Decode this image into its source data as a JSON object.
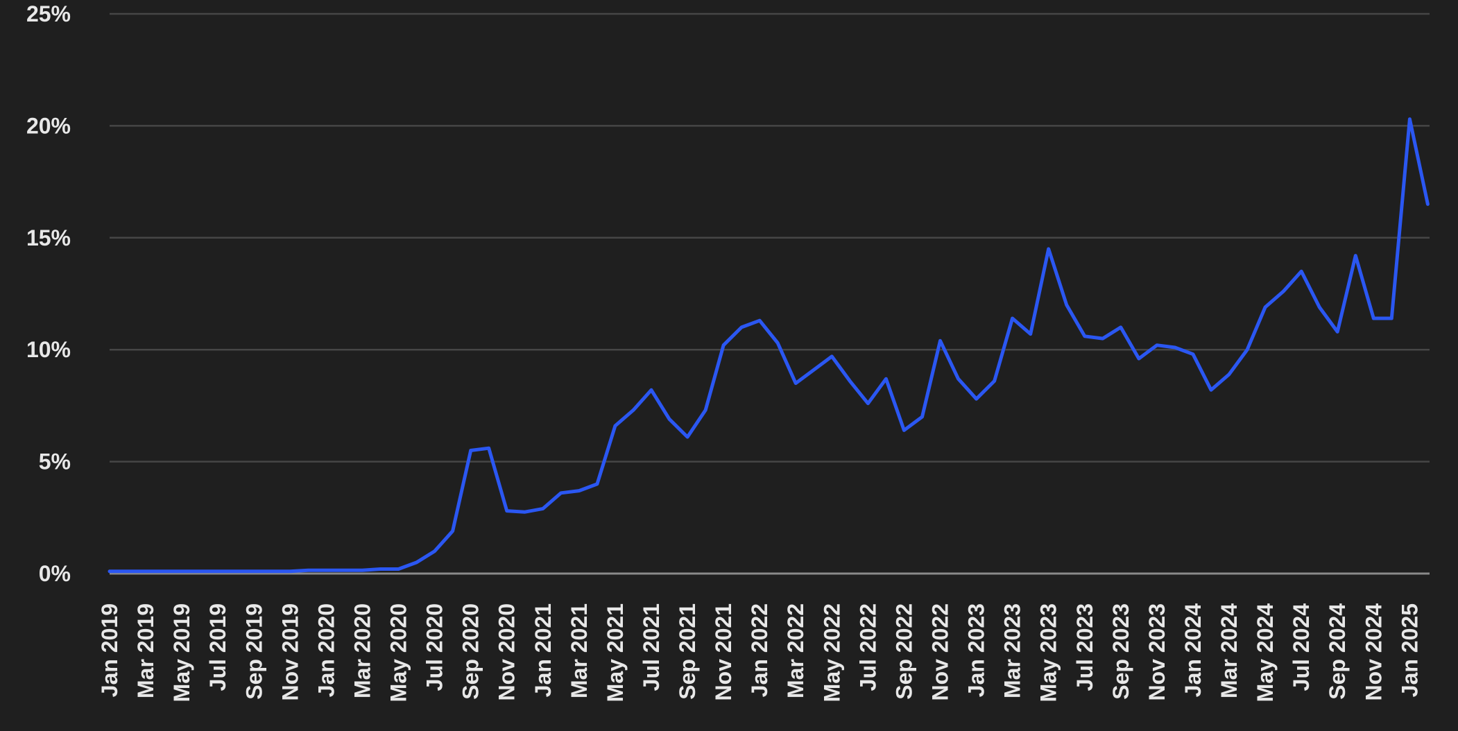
{
  "chart_data": {
    "type": "line",
    "categories": [
      "Jan 2019",
      null,
      "Mar 2019",
      null,
      "May 2019",
      null,
      "Jul 2019",
      null,
      "Sep 2019",
      null,
      "Nov 2019",
      null,
      "Jan 2020",
      null,
      "Mar 2020",
      null,
      "May 2020",
      null,
      "Jul 2020",
      null,
      "Sep 2020",
      null,
      "Nov 2020",
      null,
      "Jan 2021",
      null,
      "Mar 2021",
      null,
      "May 2021",
      null,
      "Jul 2021",
      null,
      "Sep 2021",
      null,
      "Nov 2021",
      null,
      "Jan 2022",
      null,
      "Mar 2022",
      null,
      "May 2022",
      null,
      "Jul 2022",
      null,
      "Sep 2022",
      null,
      "Nov 2022",
      null,
      "Jan 2023",
      null,
      "Mar 2023",
      null,
      "May 2023",
      null,
      "Jul 2023",
      null,
      "Sep 2023",
      null,
      "Nov 2023",
      null,
      "Jan 2024",
      null,
      "Mar 2024",
      null,
      "May 2024",
      null,
      "Jul 2024",
      null,
      "Sep 2024",
      null,
      "Nov 2024",
      null,
      "Jan 2025",
      null
    ],
    "values": [
      0.1,
      0.1,
      0.1,
      0.1,
      0.1,
      0.1,
      0.1,
      0.1,
      0.1,
      0.1,
      0.1,
      0.15,
      0.15,
      0.15,
      0.15,
      0.2,
      0.2,
      0.5,
      1.0,
      1.9,
      5.5,
      5.6,
      2.8,
      2.75,
      2.9,
      3.6,
      3.7,
      4.0,
      6.6,
      7.3,
      8.2,
      6.9,
      6.1,
      7.3,
      10.2,
      11.0,
      11.3,
      10.3,
      8.5,
      9.1,
      9.7,
      8.6,
      7.6,
      8.7,
      6.4,
      7.0,
      10.4,
      8.7,
      7.8,
      8.6,
      11.4,
      10.7,
      14.5,
      12.0,
      10.6,
      10.5,
      11.0,
      9.6,
      10.2,
      10.1,
      9.8,
      8.2,
      8.9,
      10.0,
      11.9,
      12.6,
      13.5,
      11.9,
      10.8,
      14.2,
      11.4,
      11.4,
      20.3,
      16.5
    ],
    "color": "#2b57f2",
    "ylim": [
      0,
      25
    ],
    "yticks": [
      {
        "value": 0,
        "label": "0%"
      },
      {
        "value": 5,
        "label": "5%"
      },
      {
        "value": 10,
        "label": "10%"
      },
      {
        "value": 15,
        "label": "15%"
      },
      {
        "value": 20,
        "label": "20%"
      },
      {
        "value": 25,
        "label": "25%"
      }
    ],
    "grid": true
  }
}
